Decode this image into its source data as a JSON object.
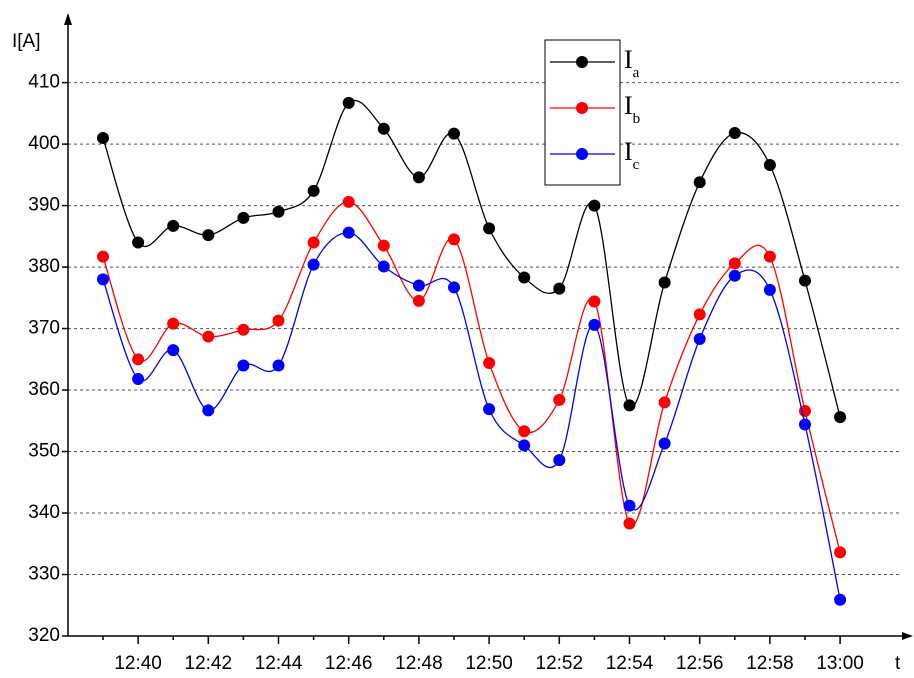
{
  "chart_data": {
    "type": "line",
    "x_label": "t",
    "y_label": "I[A]",
    "categories": [
      null,
      "12:40",
      null,
      "12:42",
      null,
      "12:44",
      null,
      "12:46",
      null,
      "12:48",
      null,
      "12:50",
      null,
      "12:52",
      null,
      "12:54",
      null,
      "12:56",
      null,
      "12:58",
      null,
      "13:00"
    ],
    "ylim": [
      320,
      421
    ],
    "yticks": [
      320,
      330,
      340,
      350,
      360,
      370,
      380,
      390,
      400,
      410
    ],
    "grid": true,
    "smooth": true,
    "legend": "top-center",
    "series": [
      {
        "name": "Ia",
        "color": "#000000",
        "values": [
          401,
          384,
          386.7,
          385.2,
          388,
          389,
          392.4,
          406.7,
          402.5,
          394.6,
          401.7,
          386.3,
          378.3,
          376.5,
          390,
          357.5,
          377.5,
          393.8,
          401.8,
          396.6,
          377.8,
          355.6
        ]
      },
      {
        "name": "Ib",
        "color": "#ff0000",
        "values": [
          381.7,
          365,
          370.8,
          368.7,
          369.8,
          371.3,
          384,
          390.6,
          383.5,
          374.5,
          384.5,
          364.4,
          353.3,
          358.4,
          374.4,
          338.3,
          358,
          372.3,
          380.6,
          381.7,
          356.6,
          333.6
        ]
      },
      {
        "name": "Ic",
        "color": "#0000ff",
        "values": [
          378,
          361.8,
          366.5,
          356.7,
          364,
          364,
          380.4,
          385.6,
          380.1,
          377,
          376.7,
          356.9,
          351,
          348.6,
          370.6,
          341.2,
          351.3,
          368.3,
          378.6,
          376.3,
          354.4,
          325.9
        ]
      }
    ]
  }
}
